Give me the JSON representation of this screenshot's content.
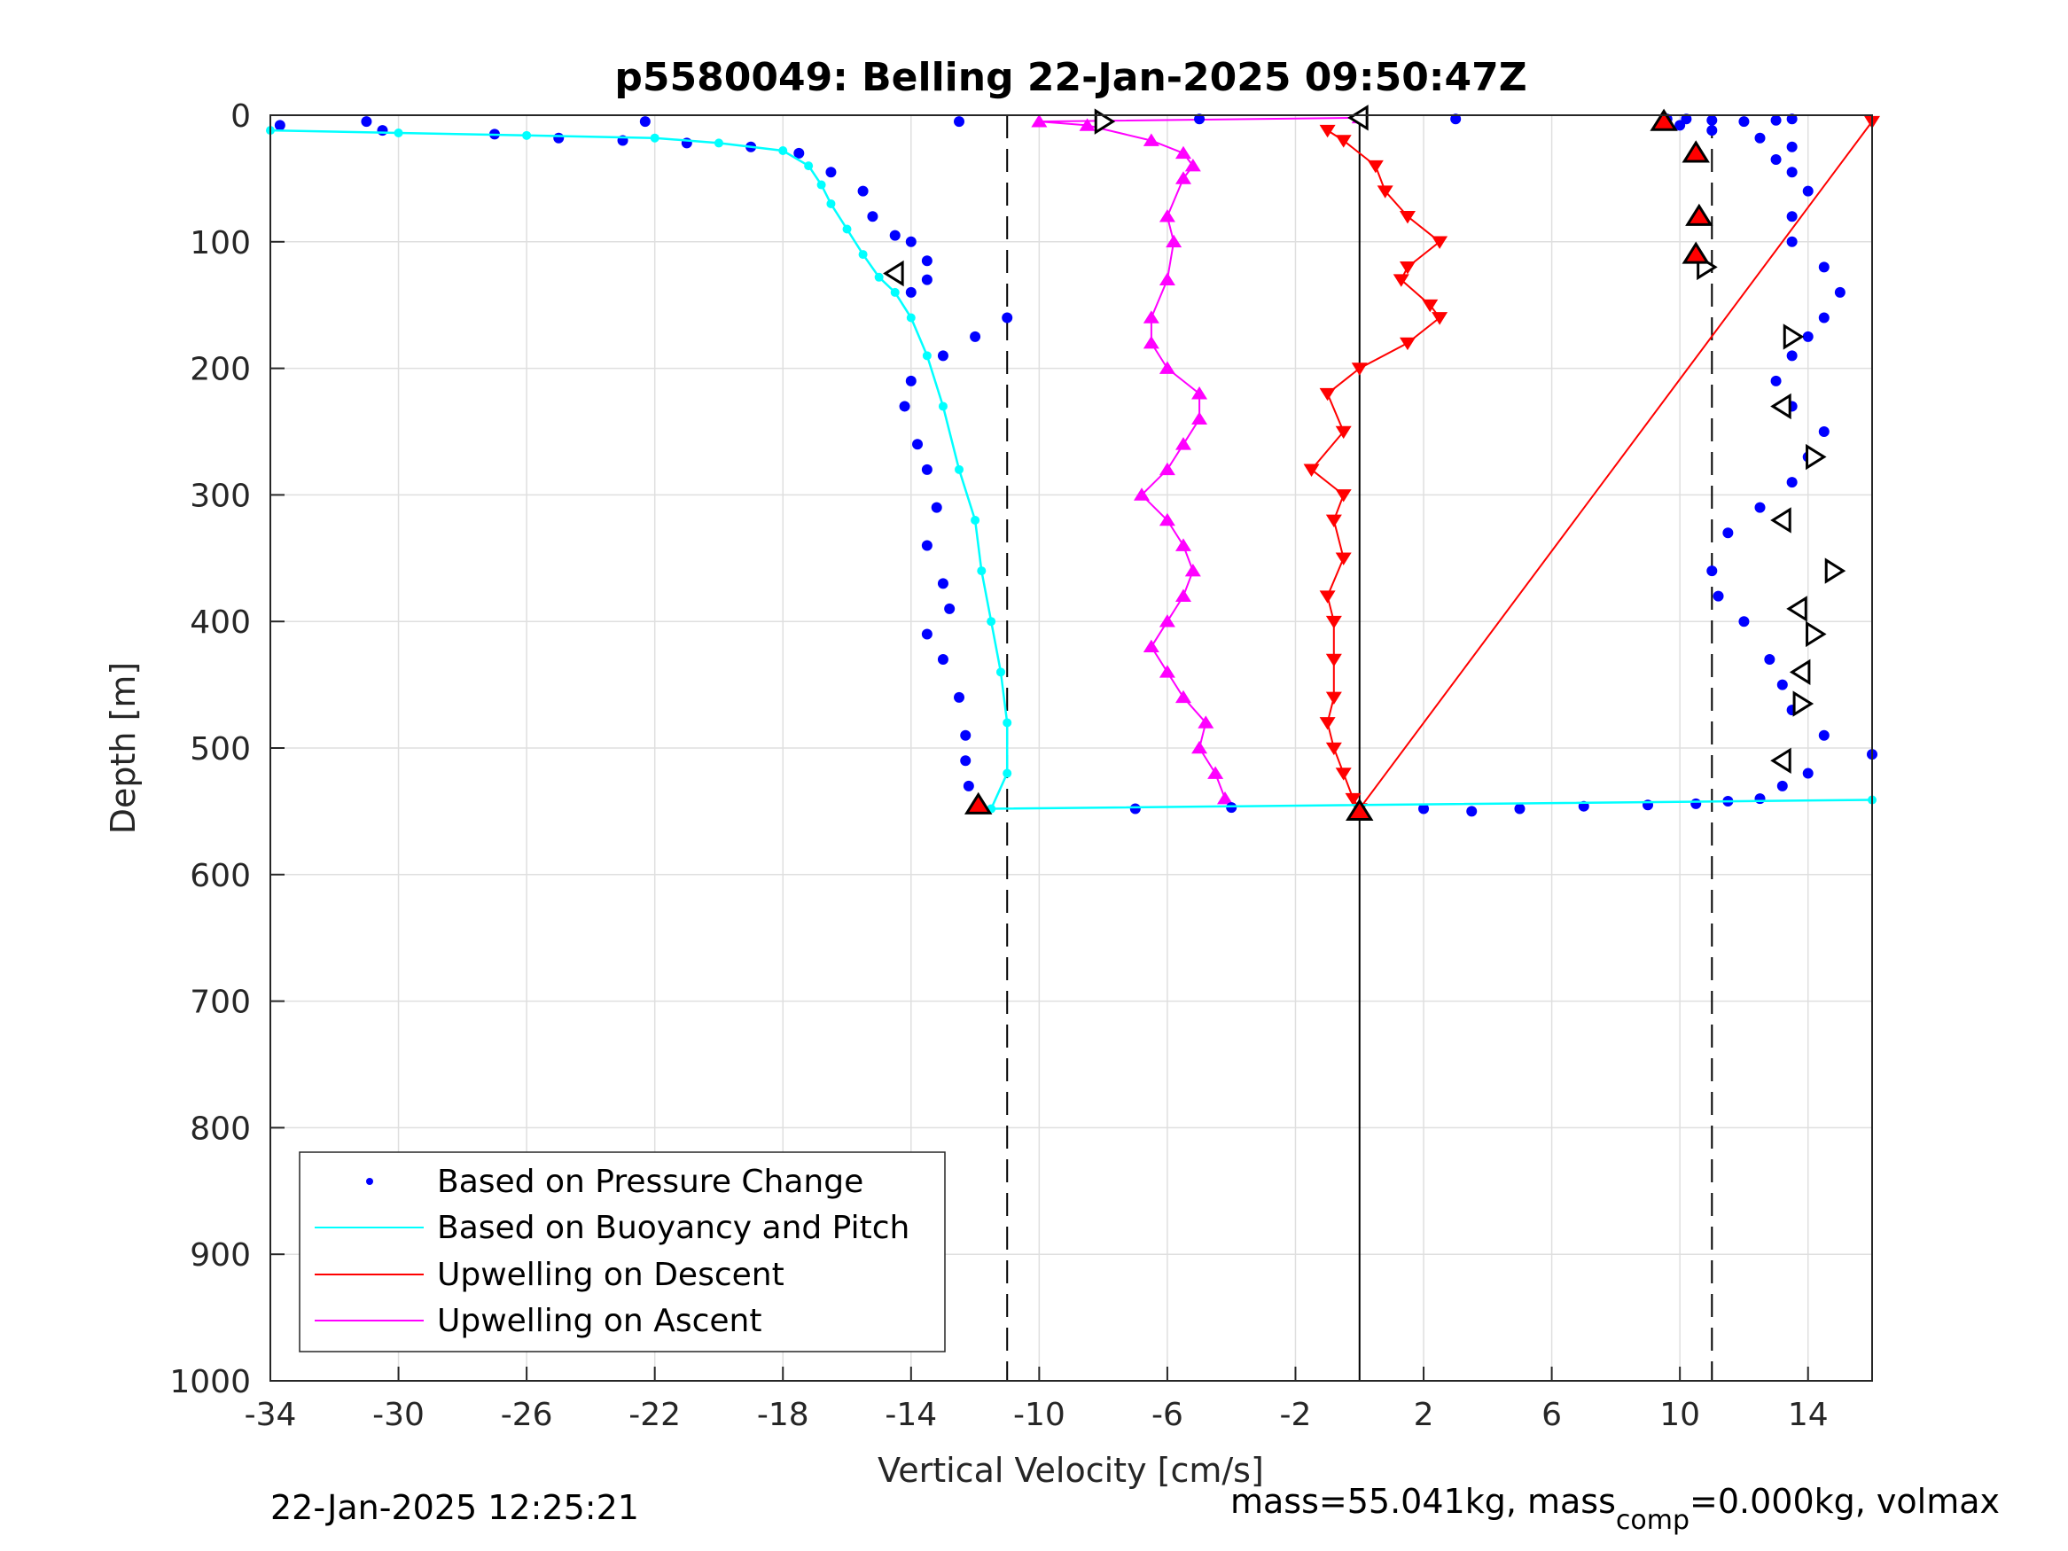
{
  "chart_data": {
    "type": "scatter",
    "title": "p5580049: Belling 22-Jan-2025 09:50:47Z",
    "xlabel": "Vertical Velocity [cm/s]",
    "ylabel": "Depth [m]",
    "xlim": [
      -34,
      16
    ],
    "ylim": [
      0,
      1000
    ],
    "y_reversed": true,
    "grid": true,
    "xticks": [
      -34,
      -30,
      -26,
      -22,
      -18,
      -14,
      -10,
      -6,
      -2,
      2,
      6,
      10,
      14
    ],
    "yticks": [
      0,
      100,
      200,
      300,
      400,
      500,
      600,
      700,
      800,
      900,
      1000
    ],
    "legend_position": "bottom-left",
    "reference_lines": [
      {
        "x": -11,
        "style": "dashed"
      },
      {
        "x": 0,
        "style": "solid"
      },
      {
        "x": 11,
        "style": "dashed"
      }
    ],
    "series": [
      {
        "name": "Based on Pressure Change",
        "color": "#0000FF",
        "marker": "dot",
        "descent": {
          "x": [
            -33.7,
            -31,
            -22.3,
            -30.5,
            -27,
            -25,
            -23,
            -21,
            -19,
            -17.5,
            -16.5,
            -15.5,
            -15.2,
            -14.5,
            -14,
            -13.5,
            -13.5,
            -14,
            -11,
            -12,
            -13,
            -14,
            -14.2,
            -13.8,
            -13.5,
            -13.2,
            -13.5,
            -13,
            -12.8,
            -13.5,
            -13,
            -12.5,
            -12.3,
            -12.3,
            -12.2,
            -11.9
          ],
          "y": [
            8,
            5,
            5,
            12,
            15,
            18,
            20,
            22,
            25,
            30,
            45,
            60,
            80,
            95,
            100,
            115,
            130,
            140,
            160,
            175,
            190,
            210,
            230,
            260,
            280,
            310,
            340,
            370,
            390,
            410,
            430,
            460,
            490,
            510,
            530,
            545
          ]
        },
        "ascent": {
          "x": [
            -7,
            -4,
            2,
            3.5,
            5,
            7,
            9,
            10.5,
            11.5,
            12.5,
            13.2,
            14,
            16,
            14.5,
            13.5,
            13.2,
            12.8,
            12,
            11.2,
            11,
            11.5,
            12.5,
            13.5,
            14,
            14.5,
            13.5,
            13,
            13.5,
            14,
            14.5,
            15,
            14.5,
            13.5,
            13.5,
            14,
            13.5,
            13,
            13.5,
            12.5,
            11,
            10,
            9.5,
            9.6,
            10.2,
            11,
            12,
            13,
            13.5,
            -12.5,
            -5,
            3
          ],
          "y": [
            548,
            547,
            548,
            550,
            548,
            546,
            545,
            544,
            542,
            540,
            530,
            520,
            505,
            490,
            470,
            450,
            430,
            400,
            380,
            360,
            330,
            310,
            290,
            270,
            250,
            230,
            210,
            190,
            175,
            160,
            140,
            120,
            100,
            80,
            60,
            45,
            35,
            25,
            18,
            12,
            8,
            5,
            3,
            3,
            4,
            5,
            4,
            3,
            5,
            3,
            3
          ]
        }
      },
      {
        "name": "Based on Buoyancy and Pitch",
        "color": "#00FFFF",
        "marker": "line",
        "x": [
          -34,
          -30,
          -26,
          -22,
          -20,
          -18,
          -17.2,
          -16.8,
          -16.5,
          -16,
          -15.5,
          -15,
          -14.5,
          -14,
          -13.5,
          -13,
          -12.5,
          -12,
          -11.8,
          -11.5,
          -11.2,
          -11,
          -11,
          -11.5,
          16
        ],
        "y": [
          12,
          14,
          16,
          18,
          22,
          28,
          40,
          55,
          70,
          90,
          110,
          128,
          140,
          160,
          190,
          230,
          280,
          320,
          360,
          400,
          440,
          480,
          520,
          548,
          541
        ]
      },
      {
        "name": "Upwelling on Descent",
        "color": "#FF0000",
        "marker": "triangle-down",
        "x": [
          -1,
          -0.5,
          0.5,
          0.8,
          1.5,
          2.5,
          1.5,
          1.3,
          2.2,
          2.5,
          1.5,
          0,
          -1,
          -0.5,
          -1.5,
          -0.5,
          -0.8,
          -0.5,
          -1,
          -0.8,
          -0.8,
          -0.8,
          -1,
          -0.8,
          -0.5,
          -0.2,
          0,
          16
        ],
        "y": [
          12,
          20,
          40,
          60,
          80,
          100,
          120,
          130,
          150,
          160,
          180,
          200,
          220,
          250,
          280,
          300,
          320,
          350,
          380,
          400,
          430,
          460,
          480,
          500,
          520,
          540,
          548,
          5
        ]
      },
      {
        "name": "Upwelling on Ascent",
        "color": "#FF00FF",
        "marker": "triangle-up",
        "x": [
          -4.2,
          -4.5,
          -5,
          -4.8,
          -5.5,
          -6,
          -6.5,
          -6,
          -5.5,
          -5.2,
          -5.5,
          -6,
          -6.8,
          -6,
          -5.5,
          -5,
          -5,
          -6,
          -6.5,
          -6.5,
          -6,
          -5.8,
          -6,
          -5.5,
          -5.2,
          -5.5,
          -6.5,
          -8.5,
          -10,
          0
        ],
        "y": [
          540,
          520,
          500,
          480,
          460,
          440,
          420,
          400,
          380,
          360,
          340,
          320,
          300,
          280,
          260,
          240,
          220,
          200,
          180,
          160,
          130,
          100,
          80,
          50,
          40,
          30,
          20,
          8,
          5,
          2
        ]
      }
    ],
    "annotations": {
      "pitch_markers": [
        {
          "x": -8,
          "y": 5,
          "dir": "right"
        },
        {
          "x": 0,
          "y": 2,
          "dir": "left"
        },
        {
          "x": -14.5,
          "y": 125,
          "dir": "left"
        },
        {
          "x": 10.8,
          "y": 120,
          "dir": "right"
        },
        {
          "x": 13.5,
          "y": 175,
          "dir": "right"
        },
        {
          "x": 13.2,
          "y": 230,
          "dir": "left"
        },
        {
          "x": 14.2,
          "y": 270,
          "dir": "right"
        },
        {
          "x": 13.2,
          "y": 320,
          "dir": "left"
        },
        {
          "x": 14.8,
          "y": 360,
          "dir": "right"
        },
        {
          "x": 13.7,
          "y": 390,
          "dir": "left"
        },
        {
          "x": 14.2,
          "y": 410,
          "dir": "right"
        },
        {
          "x": 13.8,
          "y": 440,
          "dir": "left"
        },
        {
          "x": 13.8,
          "y": 465,
          "dir": "right"
        },
        {
          "x": 13.2,
          "y": 510,
          "dir": "left"
        }
      ],
      "red_markers": [
        {
          "x": 9.5,
          "y": 5
        },
        {
          "x": 10.5,
          "y": 30
        },
        {
          "x": 10.6,
          "y": 80
        },
        {
          "x": 10.5,
          "y": 110
        },
        {
          "x": -11.9,
          "y": 545
        },
        {
          "x": 0,
          "y": 550
        }
      ]
    }
  },
  "legend": {
    "items": [
      {
        "label": "Based on Pressure Change",
        "color": "#0000FF",
        "kind": "dot"
      },
      {
        "label": "Based on Buoyancy and Pitch",
        "color": "#00FFFF",
        "kind": "line"
      },
      {
        "label": "Upwelling on Descent",
        "color": "#FF0000",
        "kind": "line"
      },
      {
        "label": "Upwelling on Ascent",
        "color": "#FF00FF",
        "kind": "line"
      }
    ]
  },
  "footer": {
    "timestamp": "22-Jan-2025 12:25:21",
    "mass_text": "mass=55.041kg, mass",
    "mass_sub": "comp",
    "mass_text2": "=0.000kg, volmax"
  }
}
